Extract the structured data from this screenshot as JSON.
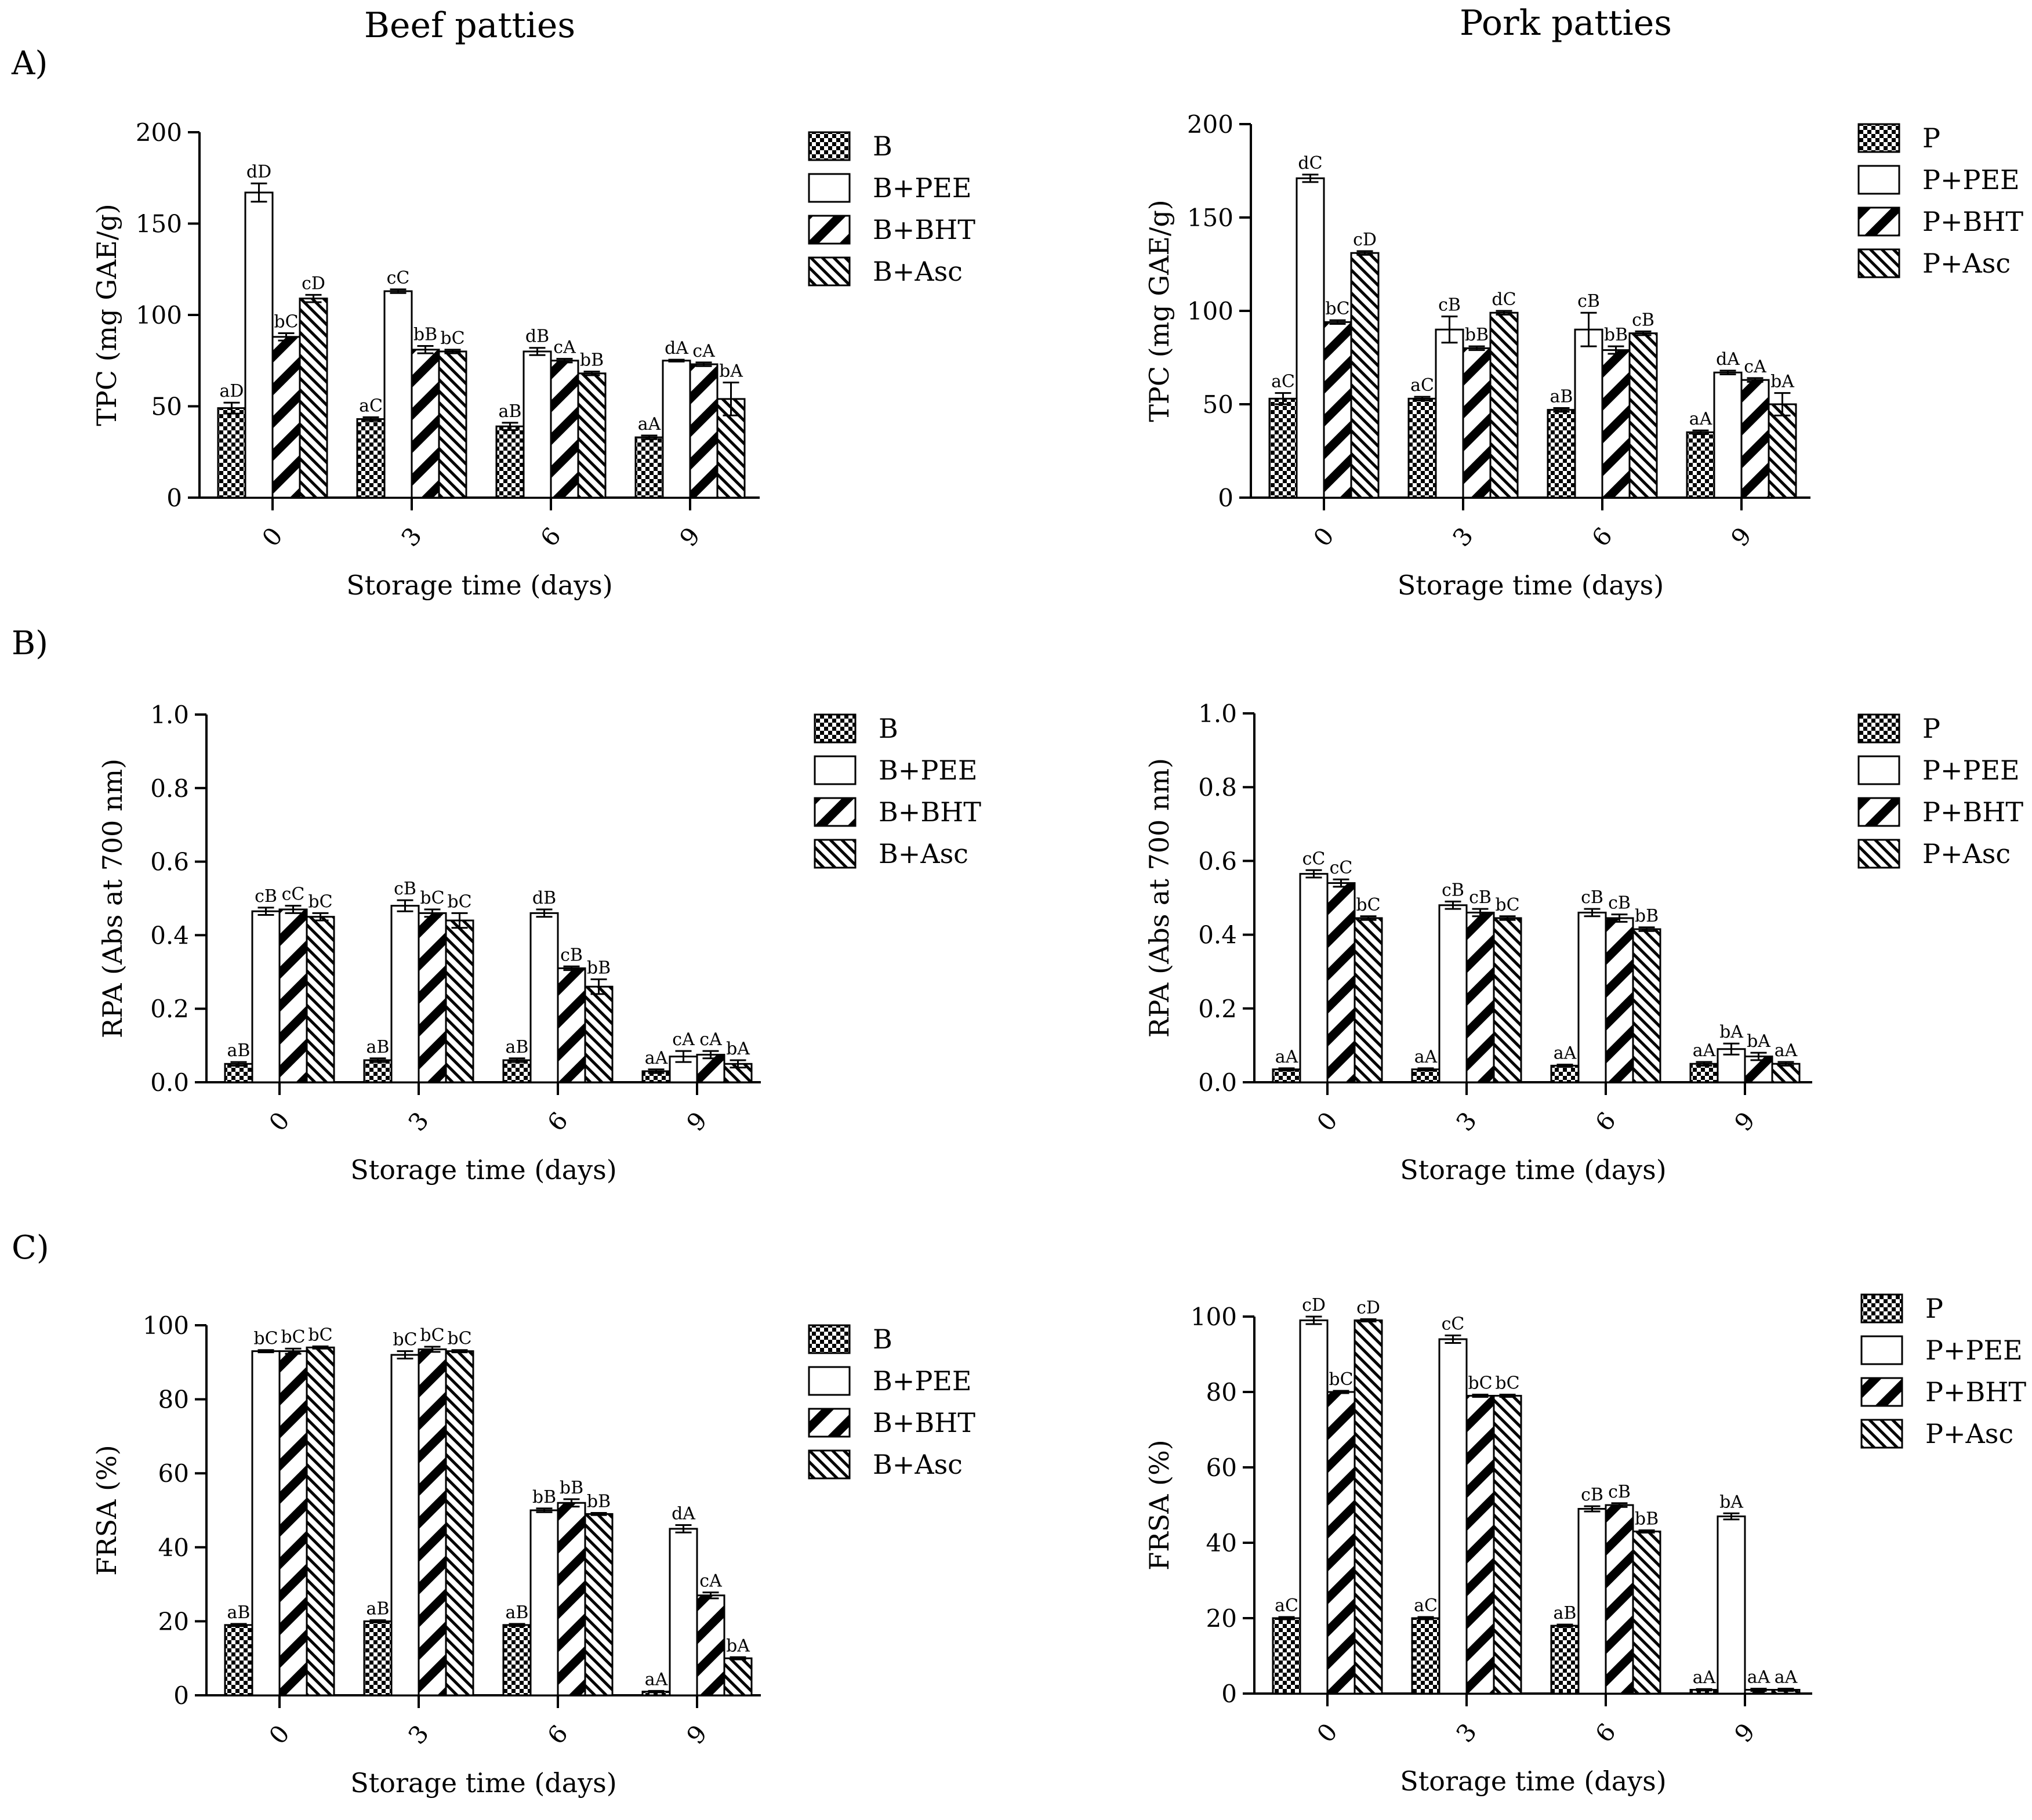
{
  "column_titles": [
    "Beef patties",
    "Pork patties"
  ],
  "panel_labels": [
    "A)",
    "B)",
    "C)"
  ],
  "styles": {
    "bar_fill": "#ffffff",
    "stroke": "#000000",
    "patterns": [
      "checker-pattern",
      "plain-white",
      "wide-diagonal-stripes",
      "narrow-back-diagonal-stripes"
    ]
  },
  "chart_data": [
    {
      "id": "A-beef",
      "type": "bar",
      "title": "",
      "xlabel": "Storage time (days)",
      "ylabel": "TPC (mg GAE/g)",
      "categories": [
        "0",
        "3",
        "6",
        "9"
      ],
      "ylim": [
        0,
        200
      ],
      "yticks": [
        "0",
        "50",
        "100",
        "150",
        "200"
      ],
      "series": [
        {
          "name": "B",
          "values": [
            49,
            43,
            39,
            33
          ],
          "errors": [
            3,
            1,
            2,
            1
          ],
          "labels": [
            "aD",
            "aC",
            "aB",
            "aA"
          ]
        },
        {
          "name": "B+PEE",
          "values": [
            167,
            113,
            80,
            75
          ],
          "errors": [
            5,
            1,
            2,
            0.5
          ],
          "labels": [
            "dD",
            "cC",
            "dB",
            "dA"
          ]
        },
        {
          "name": "B+BHT",
          "values": [
            88,
            81,
            75,
            73
          ],
          "errors": [
            2,
            2,
            1,
            1
          ],
          "labels": [
            "bC",
            "bB",
            "cA",
            "cA"
          ]
        },
        {
          "name": "B+Asc",
          "values": [
            109,
            80,
            68,
            54
          ],
          "errors": [
            2,
            1,
            1,
            9
          ],
          "labels": [
            "cD",
            "bC",
            "bB",
            "bA"
          ]
        }
      ]
    },
    {
      "id": "A-pork",
      "type": "bar",
      "title": "",
      "xlabel": "Storage time (days)",
      "ylabel": "TPC (mg GAE/g)",
      "categories": [
        "0",
        "3",
        "6",
        "9"
      ],
      "ylim": [
        0,
        200
      ],
      "yticks": [
        "0",
        "50",
        "100",
        "150",
        "200"
      ],
      "series": [
        {
          "name": "P",
          "values": [
            53,
            53,
            47,
            35
          ],
          "errors": [
            3,
            1,
            1,
            1
          ],
          "labels": [
            "aC",
            "aC",
            "aB",
            "aA"
          ]
        },
        {
          "name": "P+PEE",
          "values": [
            171,
            90,
            90,
            67
          ],
          "errors": [
            2,
            7,
            9,
            1
          ],
          "labels": [
            "dC",
            "cB",
            "cB",
            "dA"
          ]
        },
        {
          "name": "P+BHT",
          "values": [
            94,
            80,
            79,
            63
          ],
          "errors": [
            1,
            1,
            2,
            1
          ],
          "labels": [
            "bC",
            "bB",
            "bB",
            "cA"
          ]
        },
        {
          "name": "P+Asc",
          "values": [
            131,
            99,
            88,
            50
          ],
          "errors": [
            1,
            1,
            1,
            6
          ],
          "labels": [
            "cD",
            "dC",
            "cB",
            "bA"
          ]
        }
      ]
    },
    {
      "id": "B-beef",
      "type": "bar",
      "title": "",
      "xlabel": "Storage time (days)",
      "ylabel": "RPA (Abs at 700 nm)",
      "categories": [
        "0",
        "3",
        "6",
        "9"
      ],
      "ylim": [
        0,
        1.0
      ],
      "yticks": [
        "0.0",
        "0.2",
        "0.4",
        "0.6",
        "0.8",
        "1.0"
      ],
      "series": [
        {
          "name": "B",
          "values": [
            0.05,
            0.06,
            0.06,
            0.03
          ],
          "errors": [
            0.005,
            0.005,
            0.005,
            0.005
          ],
          "labels": [
            "aB",
            "aB",
            "aB",
            "aA"
          ]
        },
        {
          "name": "B+PEE",
          "values": [
            0.465,
            0.48,
            0.46,
            0.07
          ],
          "errors": [
            0.01,
            0.015,
            0.01,
            0.015
          ],
          "labels": [
            "cB",
            "cB",
            "dB",
            "cA"
          ]
        },
        {
          "name": "B+BHT",
          "values": [
            0.47,
            0.46,
            0.31,
            0.075
          ],
          "errors": [
            0.01,
            0.01,
            0.005,
            0.01
          ],
          "labels": [
            "cC",
            "bC",
            "cB",
            "cA"
          ]
        },
        {
          "name": "B+Asc",
          "values": [
            0.45,
            0.44,
            0.26,
            0.05
          ],
          "errors": [
            0.01,
            0.02,
            0.02,
            0.01
          ],
          "labels": [
            "bC",
            "bC",
            "bB",
            "bA"
          ]
        }
      ]
    },
    {
      "id": "B-pork",
      "type": "bar",
      "title": "",
      "xlabel": "Storage time (days)",
      "ylabel": "RPA (Abs at 700 nm)",
      "categories": [
        "0",
        "3",
        "6",
        "9"
      ],
      "ylim": [
        0,
        1.0
      ],
      "yticks": [
        "0.0",
        "0.2",
        "0.4",
        "0.6",
        "0.8",
        "1.0"
      ],
      "series": [
        {
          "name": "P",
          "values": [
            0.035,
            0.035,
            0.045,
            0.05
          ],
          "errors": [
            0.003,
            0.003,
            0.003,
            0.005
          ],
          "labels": [
            "aA",
            "aA",
            "aA",
            "aA"
          ]
        },
        {
          "name": "P+PEE",
          "values": [
            0.565,
            0.48,
            0.46,
            0.09
          ],
          "errors": [
            0.01,
            0.01,
            0.01,
            0.015
          ],
          "labels": [
            "cC",
            "cB",
            "cB",
            "bA"
          ]
        },
        {
          "name": "P+BHT",
          "values": [
            0.54,
            0.46,
            0.445,
            0.07
          ],
          "errors": [
            0.01,
            0.01,
            0.01,
            0.01
          ],
          "labels": [
            "cC",
            "cB",
            "cB",
            "bA"
          ]
        },
        {
          "name": "P+Asc",
          "values": [
            0.445,
            0.445,
            0.415,
            0.05
          ],
          "errors": [
            0.005,
            0.005,
            0.005,
            0.005
          ],
          "labels": [
            "bC",
            "bC",
            "bB",
            "aA"
          ]
        }
      ]
    },
    {
      "id": "C-beef",
      "type": "bar",
      "title": "",
      "xlabel": "Storage time (days)",
      "ylabel": "FRSA (%)",
      "categories": [
        "0",
        "3",
        "6",
        "9"
      ],
      "ylim": [
        0,
        100
      ],
      "yticks": [
        "0",
        "20",
        "40",
        "60",
        "80",
        "100"
      ],
      "series": [
        {
          "name": "B",
          "values": [
            19,
            20,
            19,
            1
          ],
          "errors": [
            0.3,
            0.3,
            0.3,
            0.2
          ],
          "labels": [
            "aB",
            "aB",
            "aB",
            "aA"
          ]
        },
        {
          "name": "B+PEE",
          "values": [
            93,
            92,
            50,
            45
          ],
          "errors": [
            0.3,
            1,
            0.5,
            1
          ],
          "labels": [
            "bC",
            "bC",
            "bB",
            "dA"
          ]
        },
        {
          "name": "B+BHT",
          "values": [
            93,
            93.5,
            52,
            27
          ],
          "errors": [
            0.7,
            0.7,
            1,
            0.8
          ],
          "labels": [
            "bC",
            "bC",
            "bB",
            "cA"
          ]
        },
        {
          "name": "B+Asc",
          "values": [
            94,
            93,
            49,
            10
          ],
          "errors": [
            0.3,
            0.3,
            0.3,
            0.3
          ],
          "labels": [
            "bC",
            "bC",
            "bB",
            "bA"
          ]
        }
      ]
    },
    {
      "id": "C-pork",
      "type": "bar",
      "title": "",
      "xlabel": "Storage time (days)",
      "ylabel": "FRSA (%)",
      "categories": [
        "0",
        "3",
        "6",
        "9"
      ],
      "ylim": [
        0,
        100
      ],
      "yticks": [
        "0",
        "20",
        "40",
        "60",
        "80",
        "100"
      ],
      "series": [
        {
          "name": "P",
          "values": [
            20,
            20,
            18,
            1
          ],
          "errors": [
            0.3,
            0.3,
            0.3,
            0.2
          ],
          "labels": [
            "aC",
            "aC",
            "aB",
            "aA"
          ]
        },
        {
          "name": "P+PEE",
          "values": [
            99,
            94,
            49,
            47
          ],
          "errors": [
            1,
            1,
            0.7,
            0.8
          ],
          "labels": [
            "cD",
            "cC",
            "cB",
            "bA"
          ]
        },
        {
          "name": "P+BHT",
          "values": [
            80,
            79,
            50,
            1
          ],
          "errors": [
            0.3,
            0.3,
            0.5,
            0.3
          ],
          "labels": [
            "bC",
            "bC",
            "cB",
            "aA"
          ]
        },
        {
          "name": "P+Asc",
          "values": [
            99,
            79,
            43,
            1
          ],
          "errors": [
            0.3,
            0.3,
            0.3,
            0.3
          ],
          "labels": [
            "cD",
            "bC",
            "bB",
            "aA"
          ]
        }
      ]
    }
  ]
}
